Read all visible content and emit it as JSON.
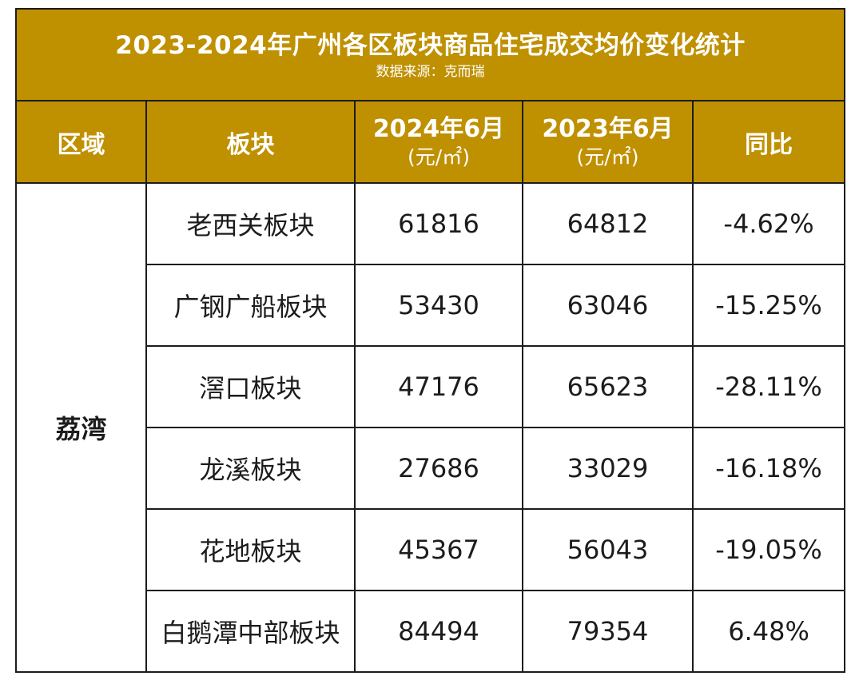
{
  "title": "2023-2024年广州各区板块商品住宅成交均价变化统计",
  "source": "数据来源：克而瑞",
  "headers": {
    "region": "区域",
    "block": "板块",
    "col_2024": "2024年6月",
    "col_2023": "2023年6月",
    "unit": "(元/㎡)",
    "yoy": "同比"
  },
  "region": "荔湾",
  "rows": [
    {
      "block": "老西关板块",
      "p2024": "61816",
      "p2023": "64812",
      "yoy": "-4.62%"
    },
    {
      "block": "广钢广船板块",
      "p2024": "53430",
      "p2023": "63046",
      "yoy": "-15.25%"
    },
    {
      "block": "滘口板块",
      "p2024": "47176",
      "p2023": "65623",
      "yoy": "-28.11%"
    },
    {
      "block": "龙溪板块",
      "p2024": "27686",
      "p2023": "33029",
      "yoy": "-16.18%"
    },
    {
      "block": "花地板块",
      "p2024": "45367",
      "p2023": "56043",
      "yoy": "-19.05%"
    },
    {
      "block": "白鹅潭中部板块",
      "p2024": "84494",
      "p2023": "79354",
      "yoy": "6.48%"
    }
  ],
  "colors": {
    "header_bg": "#bf9000",
    "header_text": "#ffffff",
    "border": "#1c1c1c",
    "body_text": "#1c1c1c"
  }
}
